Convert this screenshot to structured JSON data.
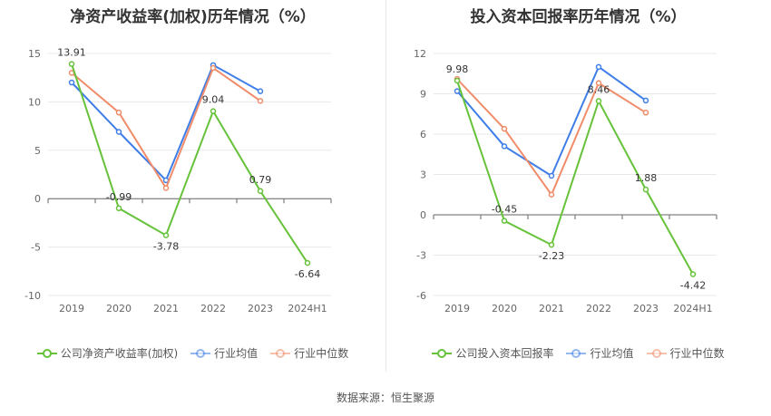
{
  "source": "数据来源：恒生聚源",
  "colors": {
    "company": "#66c23a",
    "avg": "#3f7ee8",
    "median": "#f08c6a"
  },
  "chart_data": [
    {
      "type": "line",
      "title": "净资产收益率(加权)历年情况（%）",
      "categories": [
        "2019",
        "2020",
        "2021",
        "2022",
        "2023",
        "2024H1"
      ],
      "ylim": [
        -10,
        15
      ],
      "yticks": [
        -10,
        -5,
        0,
        5,
        10,
        15
      ],
      "grid": true,
      "legend_position": "bottom",
      "series": [
        {
          "name": "公司净资产收益率(加权)",
          "key": "company",
          "values": [
            13.91,
            -0.99,
            -3.78,
            9.04,
            0.79,
            -6.64
          ],
          "labels": [
            "13.91",
            "-0.99",
            "-3.78",
            "9.04",
            "0.79",
            "-6.64"
          ]
        },
        {
          "name": "行业均值",
          "key": "avg",
          "values": [
            12.0,
            6.9,
            1.9,
            13.8,
            11.1,
            null
          ]
        },
        {
          "name": "行业中位数",
          "key": "median",
          "values": [
            13.0,
            8.9,
            1.1,
            13.5,
            10.1,
            null
          ]
        }
      ]
    },
    {
      "type": "line",
      "title": "投入资本回报率历年情况（%）",
      "categories": [
        "2019",
        "2020",
        "2021",
        "2022",
        "2023",
        "2024H1"
      ],
      "ylim": [
        -6,
        12
      ],
      "yticks": [
        -6,
        -3,
        0,
        3,
        6,
        9,
        12
      ],
      "grid": true,
      "legend_position": "bottom",
      "series": [
        {
          "name": "公司投入资本回报率",
          "key": "company",
          "values": [
            9.98,
            -0.45,
            -2.23,
            8.46,
            1.88,
            -4.42
          ],
          "labels": [
            "9.98",
            "-0.45",
            "-2.23",
            "8.46",
            "1.88",
            "-4.42"
          ]
        },
        {
          "name": "行业均值",
          "key": "avg",
          "values": [
            9.2,
            5.1,
            2.9,
            11.0,
            8.5,
            null
          ]
        },
        {
          "name": "行业中位数",
          "key": "median",
          "values": [
            10.1,
            6.4,
            1.5,
            9.8,
            7.6,
            null
          ]
        }
      ]
    }
  ]
}
